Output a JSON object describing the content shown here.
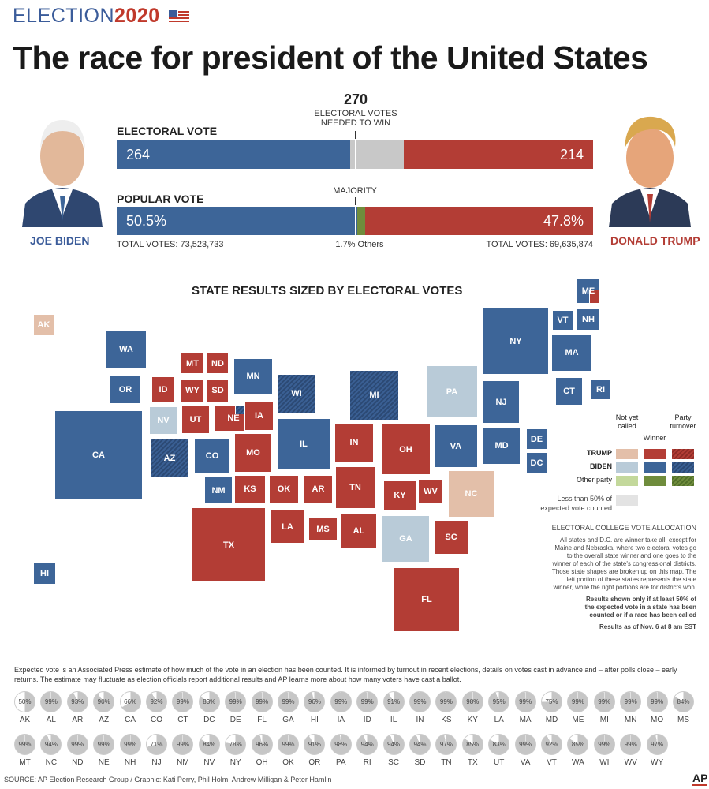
{
  "header": {
    "kicker": "ELECTION",
    "year": "2020",
    "title": "The race for president of the United States"
  },
  "colors": {
    "biden": "#3d6598",
    "trump": "#b33d35",
    "biden_pending": "#b9cbd8",
    "trump_pending": "#e3bfa9",
    "other": "#6f8c3c",
    "other_pending": "#c3d89b",
    "undecided": "#c8c8c8",
    "low_count": "#e3e3e3"
  },
  "candidates": {
    "left": {
      "name": "JOE BIDEN",
      "total": "TOTAL VOTES: 73,523,733"
    },
    "right": {
      "name": "DONALD TRUMP",
      "total": "TOTAL VOTES: 69,635,874"
    }
  },
  "electoral": {
    "label": "ELECTORAL VOTE",
    "biden": "264",
    "trump": "214",
    "threshold": "270",
    "threshold_note_1": "ELECTORAL VOTES",
    "threshold_note_2": "NEEDED TO WIN"
  },
  "popular": {
    "label": "POPULAR VOTE",
    "biden": "50.5%",
    "trump": "47.8%",
    "others": "1.7% Others",
    "majority": "MAJORITY"
  },
  "chart_data": [
    {
      "type": "bar",
      "orientation": "horizontal-stacked",
      "title": "ELECTORAL VOTE",
      "categories": [
        "Biden",
        "Undecided",
        "Trump"
      ],
      "values": [
        264,
        60,
        214
      ],
      "total": 538,
      "reference_line": 270
    },
    {
      "type": "bar",
      "orientation": "horizontal-stacked",
      "title": "POPULAR VOTE",
      "categories": [
        "Biden",
        "Others",
        "Trump"
      ],
      "values": [
        50.5,
        1.7,
        47.8
      ],
      "unit": "%",
      "reference_line": 50
    }
  ],
  "map": {
    "title": "STATE RESULTS SIZED BY ELECTORAL VOTES",
    "states": [
      {
        "abbr": "AK",
        "status": "trump_pending"
      },
      {
        "abbr": "WA",
        "status": "biden"
      },
      {
        "abbr": "OR",
        "status": "biden"
      },
      {
        "abbr": "CA",
        "status": "biden"
      },
      {
        "abbr": "NV",
        "status": "biden_pending"
      },
      {
        "abbr": "ID",
        "status": "trump"
      },
      {
        "abbr": "MT",
        "status": "trump"
      },
      {
        "abbr": "ND",
        "status": "trump"
      },
      {
        "abbr": "WY",
        "status": "trump"
      },
      {
        "abbr": "SD",
        "status": "trump"
      },
      {
        "abbr": "UT",
        "status": "trump"
      },
      {
        "abbr": "NE",
        "status": "trump",
        "split": "biden_turnover"
      },
      {
        "abbr": "AZ",
        "status": "biden_turnover"
      },
      {
        "abbr": "CO",
        "status": "biden"
      },
      {
        "abbr": "NM",
        "status": "biden"
      },
      {
        "abbr": "MN",
        "status": "biden"
      },
      {
        "abbr": "IA",
        "status": "trump"
      },
      {
        "abbr": "WI",
        "status": "biden_turnover"
      },
      {
        "abbr": "KS",
        "status": "trump"
      },
      {
        "abbr": "OK",
        "status": "trump"
      },
      {
        "abbr": "MO",
        "status": "trump"
      },
      {
        "abbr": "TX",
        "status": "trump"
      },
      {
        "abbr": "IL",
        "status": "biden"
      },
      {
        "abbr": "MI",
        "status": "biden_turnover"
      },
      {
        "abbr": "IN",
        "status": "trump"
      },
      {
        "abbr": "OH",
        "status": "trump"
      },
      {
        "abbr": "AR",
        "status": "trump"
      },
      {
        "abbr": "LA",
        "status": "trump"
      },
      {
        "abbr": "MS",
        "status": "trump"
      },
      {
        "abbr": "TN",
        "status": "trump"
      },
      {
        "abbr": "AL",
        "status": "trump"
      },
      {
        "abbr": "KY",
        "status": "trump"
      },
      {
        "abbr": "WV",
        "status": "trump"
      },
      {
        "abbr": "PA",
        "status": "biden_pending"
      },
      {
        "abbr": "GA",
        "status": "biden_pending"
      },
      {
        "abbr": "SC",
        "status": "trump"
      },
      {
        "abbr": "FL",
        "status": "trump"
      },
      {
        "abbr": "NC",
        "status": "trump_pending"
      },
      {
        "abbr": "VA",
        "status": "biden"
      },
      {
        "abbr": "MD",
        "status": "biden"
      },
      {
        "abbr": "DE",
        "status": "biden"
      },
      {
        "abbr": "DC",
        "status": "biden"
      },
      {
        "abbr": "NJ",
        "status": "biden"
      },
      {
        "abbr": "NY",
        "status": "biden"
      },
      {
        "abbr": "VT",
        "status": "biden"
      },
      {
        "abbr": "NH",
        "status": "biden"
      },
      {
        "abbr": "MA",
        "status": "biden"
      },
      {
        "abbr": "CT",
        "status": "biden"
      },
      {
        "abbr": "RI",
        "status": "biden"
      },
      {
        "abbr": "ME",
        "status": "biden",
        "split": "trump"
      },
      {
        "abbr": "HI",
        "status": "biden"
      }
    ]
  },
  "legend": {
    "col_pending": "Not yet called",
    "col_winner": "Winner",
    "col_turnover": "Party turnover",
    "row_trump": "TRUMP",
    "row_biden": "BIDEN",
    "row_other": "Other party",
    "low": "Less than 50% of expected vote counted",
    "alloc_title": "ELECTORAL COLLEGE VOTE ALLOCATION",
    "alloc_text": "All states and D.C. are winner take all, except for Maine and Nebraska, where two electoral votes go to the overall state winner and one goes to the winner of each of the state's congressional districts. Those state shapes are broken up on this map. The left portion of these states represents the state winner, while the right portions are for districts won.",
    "results_note": "Results shown only if at least 50% of the expected vote in a state has been counted or if a race has been called",
    "asof": "Results as of Nov. 6 at 8 am EST"
  },
  "expected_note": "Expected vote is an Associated Press estimate of how much of the vote in an election has been counted. It is informed by turnout in recent elections, details on votes cast in advance and – after polls close – early returns. The estimate may fluctuate as election officials report additional results and AP learns more about how many voters have cast a ballot.",
  "expected": [
    [
      [
        "AK",
        50
      ],
      [
        "AL",
        99
      ],
      [
        "AR",
        93
      ],
      [
        "AZ",
        90
      ],
      [
        "CA",
        66
      ],
      [
        "CO",
        92
      ],
      [
        "CT",
        99
      ],
      [
        "DC",
        83
      ],
      [
        "DE",
        99
      ],
      [
        "FL",
        99
      ],
      [
        "GA",
        99
      ],
      [
        "HI",
        96
      ],
      [
        "IA",
        99
      ],
      [
        "ID",
        99
      ],
      [
        "IL",
        91
      ],
      [
        "IN",
        99
      ],
      [
        "KS",
        99
      ],
      [
        "KY",
        98
      ],
      [
        "LA",
        95
      ],
      [
        "MA",
        99
      ],
      [
        "MD",
        75
      ],
      [
        "ME",
        99
      ],
      [
        "MI",
        99
      ],
      [
        "MN",
        99
      ],
      [
        "MO",
        99
      ],
      [
        "MS",
        84
      ]
    ],
    [
      [
        "MT",
        99
      ],
      [
        "NC",
        94
      ],
      [
        "ND",
        99
      ],
      [
        "NE",
        99
      ],
      [
        "NH",
        99
      ],
      [
        "NJ",
        71
      ],
      [
        "NM",
        99
      ],
      [
        "NV",
        84
      ],
      [
        "NY",
        78
      ],
      [
        "OH",
        96
      ],
      [
        "OK",
        99
      ],
      [
        "OR",
        91
      ],
      [
        "PA",
        98
      ],
      [
        "RI",
        94
      ],
      [
        "SC",
        94
      ],
      [
        "SD",
        94
      ],
      [
        "TN",
        97
      ],
      [
        "TX",
        85
      ],
      [
        "UT",
        83
      ],
      [
        "VA",
        99
      ],
      [
        "VT",
        92
      ],
      [
        "WA",
        85
      ],
      [
        "WI",
        99
      ],
      [
        "WV",
        99
      ],
      [
        "WY",
        97
      ]
    ]
  ],
  "source": "SOURCE: AP Election Research Group / Graphic: Kati Perry, Phil Holm, Andrew Milligan & Peter Hamlin",
  "logo": "AP"
}
